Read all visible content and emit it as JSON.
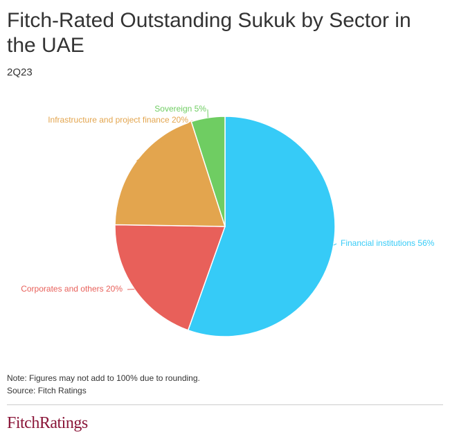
{
  "chart_data": {
    "type": "pie",
    "title": "Fitch-Rated Outstanding Sukuk by Sector in the UAE",
    "subtitle": "2Q23",
    "categories": [
      "Financial institutions",
      "Corporates and others",
      "Infrastructure and project finance",
      "Sovereign"
    ],
    "values": [
      56,
      20,
      20,
      5
    ],
    "value_labels": [
      "56%",
      "20%",
      "20%",
      "5%"
    ],
    "colors": [
      "#36cbf7",
      "#e8605a",
      "#e3a54e",
      "#6fcd62"
    ],
    "note": "Note: Figures may not add to 100% due to rounding.",
    "source": "Source: Fitch Ratings",
    "logo": "FitchRatings"
  }
}
